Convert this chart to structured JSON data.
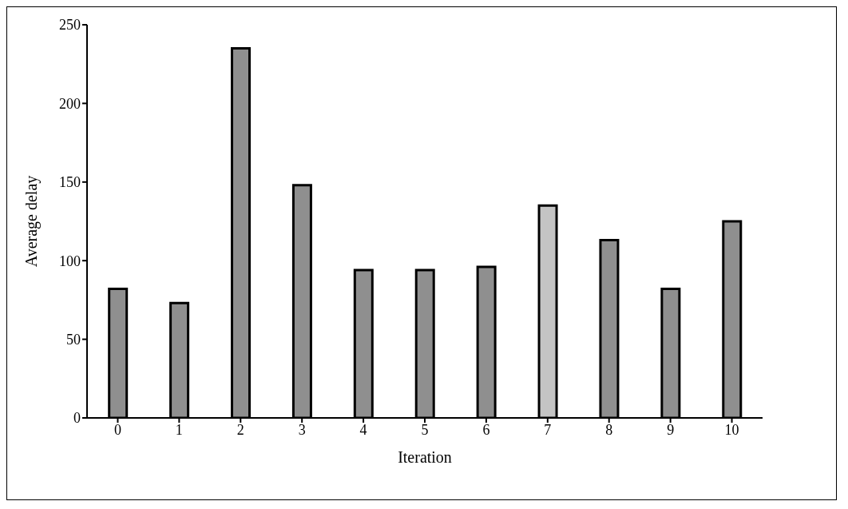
{
  "chart_data": {
    "type": "bar",
    "xlabel": "Iteration",
    "ylabel": "Average delay",
    "categories": [
      "0",
      "1",
      "2",
      "3",
      "4",
      "5",
      "6",
      "7",
      "8",
      "9",
      "10"
    ],
    "values": [
      82,
      73,
      235,
      148,
      94,
      94,
      96,
      135,
      113,
      82,
      125
    ],
    "colors": [
      "#8f8f8f",
      "#8f8f8f",
      "#8f8f8f",
      "#8f8f8f",
      "#8f8f8f",
      "#8f8f8f",
      "#8f8f8f",
      "#c4c4c4",
      "#8f8f8f",
      "#8f8f8f",
      "#8f8f8f"
    ],
    "ylim": [
      0,
      250
    ],
    "yticks": [
      0,
      50,
      100,
      150,
      200,
      250
    ],
    "grid": false,
    "legend": false
  }
}
